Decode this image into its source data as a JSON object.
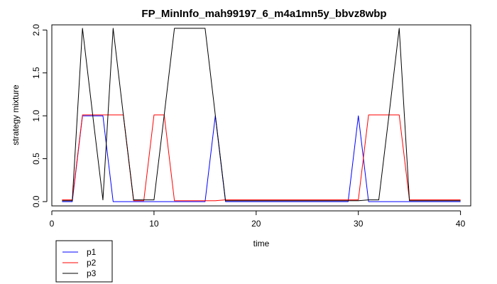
{
  "chart_data": {
    "type": "line",
    "title": "FP_MinInfo_mah99197_6_m4a1mn5y_bbvz8wbp",
    "xlabel": "time",
    "ylabel": "strategy mixture",
    "xlim": [
      0,
      41
    ],
    "ylim": [
      -0.05,
      2.06
    ],
    "x_ticks": [
      0,
      10,
      20,
      30,
      40
    ],
    "y_ticks": [
      0.0,
      0.5,
      1.0,
      1.5,
      2.0
    ],
    "x_tick_labels": [
      "0",
      "10",
      "20",
      "30",
      "40"
    ],
    "y_tick_labels": [
      "0.0",
      "0.5",
      "1.0",
      "1.5",
      "2.0"
    ],
    "x": [
      1,
      2,
      3,
      4,
      5,
      6,
      7,
      8,
      9,
      10,
      11,
      12,
      13,
      14,
      15,
      16,
      17,
      18,
      19,
      20,
      21,
      22,
      23,
      24,
      25,
      26,
      27,
      28,
      29,
      30,
      31,
      32,
      33,
      34,
      35,
      36,
      37,
      38,
      39,
      40
    ],
    "legend_position": "bottom-left",
    "series": [
      {
        "name": "p1",
        "color": "#0000ff",
        "values": [
          0,
          0,
          1,
          1,
          1,
          0,
          0,
          0,
          0,
          0,
          0,
          0,
          0,
          0,
          0,
          1,
          0,
          0,
          0,
          0,
          0,
          0,
          0,
          0,
          0,
          0,
          0,
          0,
          0,
          1,
          0,
          0,
          0,
          0,
          0,
          0,
          0,
          0,
          0,
          0
        ]
      },
      {
        "name": "p2",
        "color": "#ff0000",
        "values": [
          0.02,
          0.02,
          1.01,
          1.01,
          1.01,
          1.01,
          1.01,
          0.01,
          0.01,
          1.01,
          1.01,
          0.01,
          0.01,
          0.01,
          0.01,
          0.01,
          0.02,
          0.02,
          0.02,
          0.02,
          0.02,
          0.02,
          0.02,
          0.02,
          0.02,
          0.02,
          0.02,
          0.02,
          0.02,
          0.02,
          1.01,
          1.01,
          1.01,
          1.01,
          0.02,
          0.02,
          0.02,
          0.02,
          0.02,
          0.02
        ]
      },
      {
        "name": "p3",
        "color": "#000000",
        "values": [
          0.01,
          0.01,
          2.02,
          1.01,
          0.02,
          2.02,
          1.01,
          0.02,
          0.02,
          0.02,
          1.01,
          2.02,
          2.02,
          2.02,
          2.02,
          1.01,
          0.01,
          0.01,
          0.01,
          0.01,
          0.01,
          0.01,
          0.01,
          0.01,
          0.01,
          0.01,
          0.01,
          0.01,
          0.01,
          0.01,
          0.02,
          0.02,
          1.01,
          2.02,
          0.01,
          0.01,
          0.01,
          0.01,
          0.01,
          0.01
        ]
      }
    ]
  }
}
